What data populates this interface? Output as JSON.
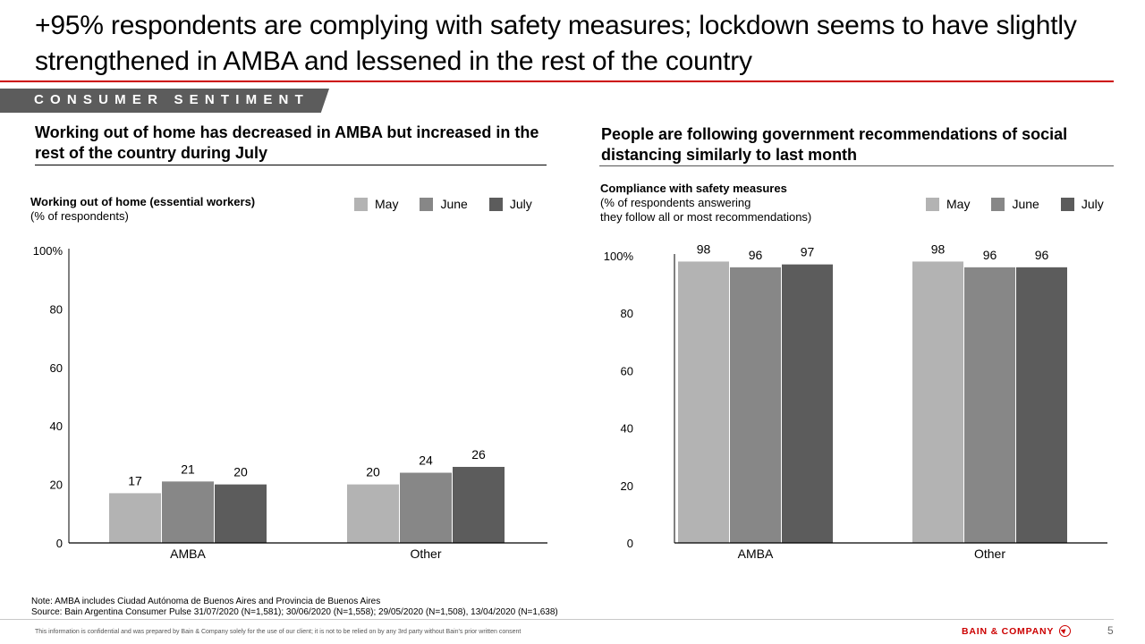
{
  "slide": {
    "title": "+95% respondents are complying with safety measures; lockdown seems to have slightly strengthened in AMBA and lessened in the rest of the country",
    "section_tag": "CONSUMER SENTIMENT",
    "page_number": "5",
    "brand": "BAIN & COMPANY",
    "note": "Note: AMBA includes Ciudad Autónoma de Buenos Aires and Provincia de Buenos Aires",
    "source": "Source: Bain Argentina Consumer Pulse 31/07/2020 (N=1,581); 30/06/2020 (N=1,558); 29/05/2020 (N=1,508), 13/04/2020 (N=1,638)",
    "disclaimer": "This information is confidential and was prepared by Bain & Company solely for the use of our client; it is not to be relied on by any 3rd party without Bain's prior written consent",
    "accent_color": "#cc0000"
  },
  "left_panel": {
    "heading": "Working out of home has decreased in AMBA but increased in the rest of the country during July"
  },
  "right_panel": {
    "heading": "People are following government recommendations of social distancing similarly to last month"
  },
  "chart_data": [
    {
      "type": "bar",
      "title": "Working out of home (essential workers)",
      "subtitle": "(% of respondents)",
      "categories": [
        "AMBA",
        "Other"
      ],
      "series": [
        {
          "name": "May",
          "color": "#b3b3b3",
          "values": [
            17,
            20
          ]
        },
        {
          "name": "June",
          "color": "#878787",
          "values": [
            21,
            24
          ]
        },
        {
          "name": "July",
          "color": "#5c5c5c",
          "values": [
            20,
            26
          ]
        }
      ],
      "yticks": [
        "0",
        "20",
        "40",
        "60",
        "80",
        "100%"
      ],
      "ylim": [
        0,
        100
      ],
      "xlabel": "",
      "ylabel": "",
      "grid": false,
      "legend": "top-right"
    },
    {
      "type": "bar",
      "title": "Compliance with safety measures",
      "subtitle": "(% of respondents answering they follow all or most recommendations)",
      "subtitle_lines": [
        "(% of respondents answering",
        "they follow all or most recommendations)"
      ],
      "categories": [
        "AMBA",
        "Other"
      ],
      "series": [
        {
          "name": "May",
          "color": "#b3b3b3",
          "values": [
            98,
            98
          ]
        },
        {
          "name": "June",
          "color": "#878787",
          "values": [
            96,
            96
          ]
        },
        {
          "name": "July",
          "color": "#5c5c5c",
          "values": [
            97,
            96
          ]
        }
      ],
      "yticks": [
        "0",
        "20",
        "40",
        "60",
        "80",
        "100%"
      ],
      "ylim": [
        0,
        100
      ],
      "xlabel": "",
      "ylabel": "",
      "grid": false,
      "legend": "top-right"
    }
  ]
}
